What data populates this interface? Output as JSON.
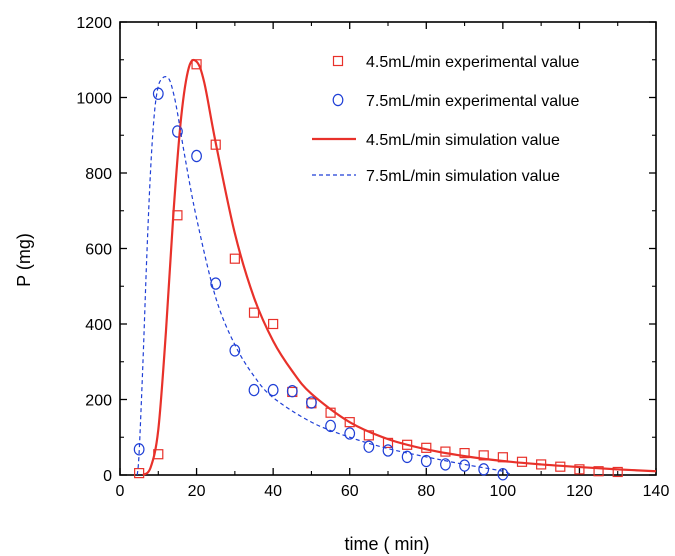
{
  "chart_data": {
    "type": "scatter",
    "xlabel": "time ( min)",
    "ylabel": "P  (mg)",
    "xlim": [
      0,
      140
    ],
    "ylim": [
      0,
      1200
    ],
    "xticks": [
      0,
      20,
      40,
      60,
      80,
      100,
      120,
      140
    ],
    "yticks": [
      0,
      200,
      400,
      600,
      800,
      1000,
      1200
    ],
    "grid": false,
    "legend_position": "top-right",
    "series": [
      {
        "name": "4.5mL/min experimental value",
        "kind": "markers",
        "marker": "square",
        "color": "#e8312a",
        "x": [
          5,
          10,
          15,
          20,
          25,
          30,
          35,
          40,
          45,
          50,
          55,
          60,
          65,
          70,
          75,
          80,
          85,
          90,
          95,
          100,
          105,
          110,
          115,
          120,
          125,
          130
        ],
        "y": [
          5,
          55,
          688,
          1088,
          875,
          573,
          430,
          400,
          220,
          190,
          165,
          140,
          105,
          85,
          80,
          72,
          62,
          58,
          52,
          47,
          35,
          28,
          22,
          15,
          10,
          8
        ]
      },
      {
        "name": "7.5mL/min experimental value",
        "kind": "markers",
        "marker": "circle",
        "color": "#1f3fd6",
        "x": [
          5,
          10,
          15,
          20,
          25,
          30,
          35,
          40,
          45,
          50,
          55,
          60,
          65,
          70,
          75,
          80,
          85,
          90,
          95,
          100
        ],
        "y": [
          68,
          1010,
          910,
          845,
          507,
          330,
          225,
          225,
          222,
          192,
          130,
          110,
          75,
          65,
          48,
          37,
          28,
          25,
          15,
          2
        ]
      },
      {
        "name": "4.5mL/min simulation value",
        "kind": "line",
        "style": "solid",
        "color": "#e8312a",
        "x": [
          6,
          8,
          10,
          12,
          14,
          16,
          18,
          20,
          22,
          25,
          30,
          35,
          40,
          45,
          50,
          60,
          70,
          80,
          90,
          100,
          110,
          120,
          130,
          140
        ],
        "y": [
          0,
          20,
          120,
          380,
          700,
          950,
          1080,
          1095,
          1040,
          880,
          640,
          470,
          355,
          275,
          215,
          140,
          95,
          68,
          50,
          37,
          28,
          21,
          15,
          10
        ]
      },
      {
        "name": "7.5mL/min simulation value",
        "kind": "line",
        "style": "dashed",
        "color": "#1f3fd6",
        "x": [
          4.5,
          5,
          6,
          7,
          8,
          9,
          10,
          11,
          12,
          13,
          14,
          15,
          17,
          20,
          25,
          30,
          35,
          40,
          50,
          60,
          70,
          80,
          90,
          100,
          102
        ],
        "y": [
          0,
          60,
          300,
          580,
          810,
          960,
          1030,
          1050,
          1055,
          1045,
          1010,
          960,
          840,
          680,
          470,
          345,
          262,
          205,
          140,
          100,
          70,
          48,
          28,
          10,
          0
        ]
      }
    ]
  }
}
